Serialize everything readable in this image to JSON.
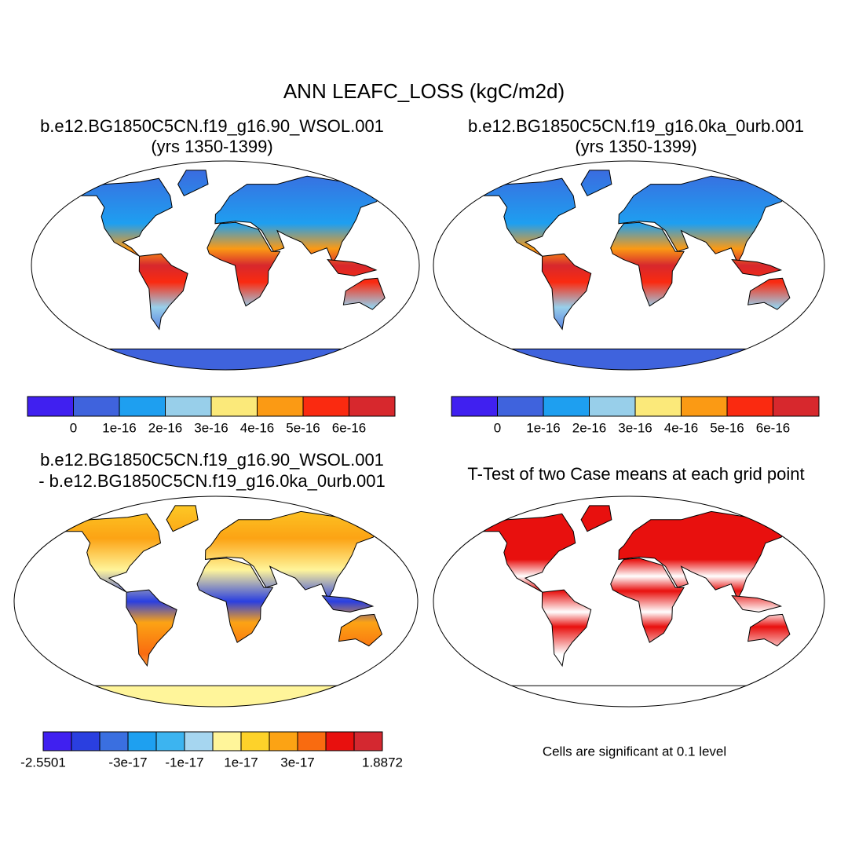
{
  "title": "ANN LEAFC_LOSS (kgC/m2d)",
  "panels": [
    {
      "title": [
        "b.e12.BG1850C5CN.f19_g16.90_WSOL.001",
        "(yrs 1350-1399)"
      ],
      "colorbar": {
        "colors": [
          "#4020f0",
          "#3f63dd",
          "#1e9ff0",
          "#98cfea",
          "#fbe97a",
          "#fb9a14",
          "#fa2a10",
          "#d7282d"
        ],
        "labels": [
          null,
          "0",
          "1e-16",
          "2e-16",
          "3e-16",
          "4e-16",
          "5e-16",
          "6e-16",
          null
        ]
      }
    },
    {
      "title": [
        "b.e12.BG1850C5CN.f19_g16.0ka_0urb.001",
        "(yrs 1350-1399)"
      ],
      "colorbar": {
        "colors": [
          "#4020f0",
          "#3f63dd",
          "#1e9ff0",
          "#98cfea",
          "#fbe97a",
          "#fb9a14",
          "#fa2a10",
          "#d7282d"
        ],
        "labels": [
          null,
          "0",
          "1e-16",
          "2e-16",
          "3e-16",
          "4e-16",
          "5e-16",
          "6e-16",
          null
        ]
      }
    },
    {
      "title": [
        "b.e12.BG1850C5CN.f19_g16.90_WSOL.001",
        "- b.e12.BG1850C5CN.f19_g16.0ka_0urb.001"
      ],
      "colorbar": {
        "colors": [
          "#4020f0",
          "#2a3fe0",
          "#3a6fe0",
          "#1ea0f0",
          "#3cb4f0",
          "#a6d6f0",
          "#fff59a",
          "#fdd22a",
          "#fca314",
          "#f96b10",
          "#e8100e",
          "#d42830"
        ],
        "labels": [
          "-2.5501",
          null,
          null,
          "-3e-17",
          null,
          "-1e-17",
          null,
          "1e-17",
          null,
          "3e-17",
          null,
          null,
          "1.8872"
        ]
      }
    },
    {
      "title": [
        "T-Test of two Case means at each grid point"
      ],
      "note": "Cells are significant at 0.1 level"
    }
  ]
}
